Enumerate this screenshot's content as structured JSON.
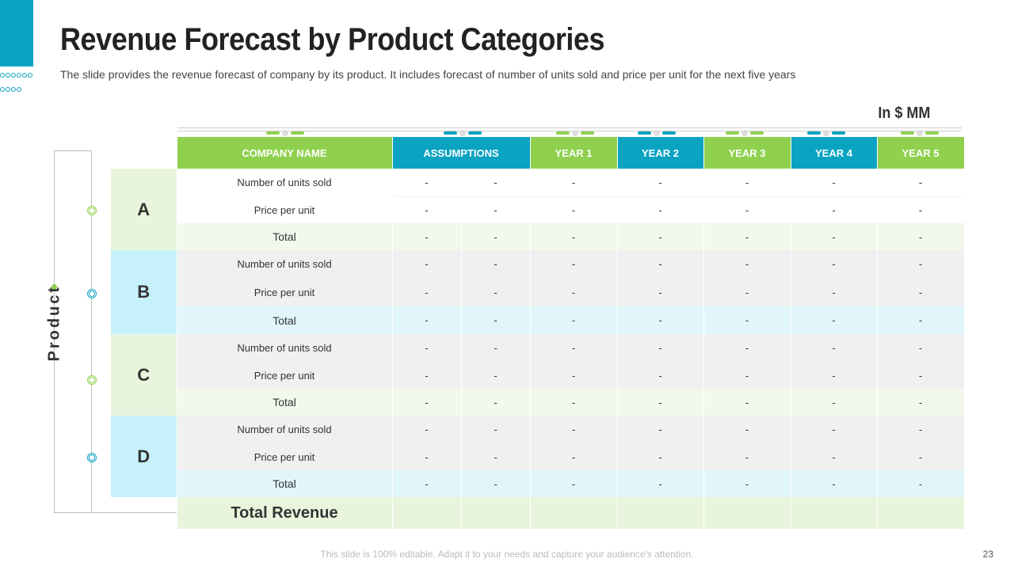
{
  "header": {
    "title": "Revenue Forecast by Product Categories",
    "subtitle": "The slide provides the revenue forecast of company by its product. It includes forecast of number of units sold and price per unit for the next five years",
    "unit": "In $ MM"
  },
  "side_label": "Product",
  "table": {
    "columns": [
      "COMPANY NAME",
      "ASSUMPTIONS",
      "YEAR 1",
      "YEAR 2",
      "YEAR 3",
      "YEAR 4",
      "YEAR 5"
    ],
    "groups": [
      {
        "name": "A",
        "rows": [
          {
            "label": "Number of units sold",
            "values": [
              "-",
              "-",
              "-",
              "-",
              "-",
              "-",
              "-"
            ]
          },
          {
            "label": "Price per unit",
            "values": [
              "-",
              "-",
              "-",
              "-",
              "-",
              "-",
              "-"
            ]
          },
          {
            "label": "Total",
            "values": [
              "-",
              "-",
              "-",
              "-",
              "-",
              "-",
              "-"
            ]
          }
        ]
      },
      {
        "name": "B",
        "rows": [
          {
            "label": "Number of units sold",
            "values": [
              "-",
              "-",
              "-",
              "-",
              "-",
              "-",
              "-"
            ]
          },
          {
            "label": "Price per unit",
            "values": [
              "-",
              "-",
              "-",
              "-",
              "-",
              "-",
              "-"
            ]
          },
          {
            "label": "Total",
            "values": [
              "-",
              "-",
              "-",
              "-",
              "-",
              "-",
              "-"
            ]
          }
        ]
      },
      {
        "name": "C",
        "rows": [
          {
            "label": "Number of units sold",
            "values": [
              "-",
              "-",
              "-",
              "-",
              "-",
              "-",
              "-"
            ]
          },
          {
            "label": "Price per unit",
            "values": [
              "-",
              "-",
              "-",
              "-",
              "-",
              "-",
              "-"
            ]
          },
          {
            "label": "Total",
            "values": [
              "-",
              "-",
              "-",
              "-",
              "-",
              "-",
              "-"
            ]
          }
        ]
      },
      {
        "name": "D",
        "rows": [
          {
            "label": "Number of units sold",
            "values": [
              "-",
              "-",
              "-",
              "-",
              "-",
              "-",
              "-"
            ]
          },
          {
            "label": "Price per unit",
            "values": [
              "-",
              "-",
              "-",
              "-",
              "-",
              "-",
              "-"
            ]
          },
          {
            "label": "Total",
            "values": [
              "-",
              "-",
              "-",
              "-",
              "-",
              "-",
              "-"
            ]
          }
        ]
      }
    ],
    "total_revenue_label": "Total Revenue"
  },
  "footer": {
    "note": "This slide is 100% editable. Adapt it to your needs and capture your audience's attention.",
    "page_number": "23"
  },
  "colors": {
    "green": "#8fd14f",
    "blue": "#0aa3c2",
    "light_green": "#e8f5dc",
    "light_blue": "#c6f1fb"
  }
}
